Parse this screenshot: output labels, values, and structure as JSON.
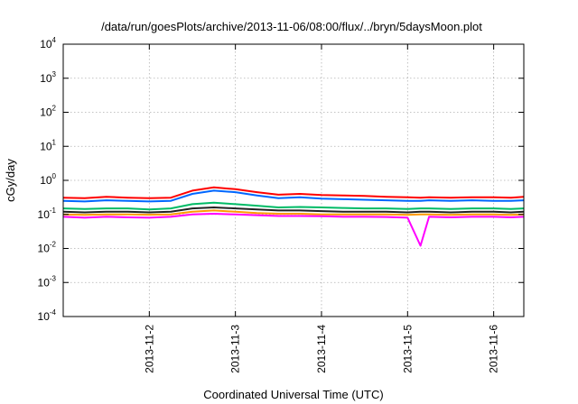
{
  "chart_data": {
    "type": "line",
    "title": "/data/run/goesPlots/archive/2013-11-06/08:00/flux/../bryn/5daysMoon.plot",
    "xlabel": "Coordinated Universal Time (UTC)",
    "ylabel": "cGy/day",
    "yscale": "log",
    "ylim": [
      0.0001,
      10000
    ],
    "xlim": [
      1.0,
      6.35
    ],
    "grid": true,
    "y_ticks": [
      {
        "base": "10",
        "exp": "-4",
        "value": 0.0001
      },
      {
        "base": "10",
        "exp": "-3",
        "value": 0.001
      },
      {
        "base": "10",
        "exp": "-2",
        "value": 0.01
      },
      {
        "base": "10",
        "exp": "-1",
        "value": 0.1
      },
      {
        "base": "10",
        "exp": "0",
        "value": 1
      },
      {
        "base": "10",
        "exp": "1",
        "value": 10
      },
      {
        "base": "10",
        "exp": "2",
        "value": 100
      },
      {
        "base": "10",
        "exp": "3",
        "value": 1000
      },
      {
        "base": "10",
        "exp": "4",
        "value": 10000
      }
    ],
    "x_ticks": [
      {
        "label": "2013-11-2",
        "value": 2
      },
      {
        "label": "2013-11-3",
        "value": 3
      },
      {
        "label": "2013-11-4",
        "value": 4
      },
      {
        "label": "2013-11-5",
        "value": 5
      },
      {
        "label": "2013-11-6",
        "value": 6
      }
    ],
    "x": [
      1.0,
      1.25,
      1.5,
      1.75,
      2.0,
      2.25,
      2.5,
      2.75,
      3.0,
      3.25,
      3.5,
      3.75,
      4.0,
      4.25,
      4.5,
      4.75,
      5.0,
      5.15,
      5.25,
      5.5,
      5.75,
      6.0,
      6.2,
      6.35
    ],
    "series": [
      {
        "color": "#ff0000",
        "values": [
          0.31,
          0.3,
          0.33,
          0.31,
          0.3,
          0.31,
          0.5,
          0.62,
          0.55,
          0.45,
          0.38,
          0.4,
          0.37,
          0.36,
          0.35,
          0.33,
          0.32,
          0.31,
          0.32,
          0.31,
          0.32,
          0.32,
          0.31,
          0.33
        ]
      },
      {
        "color": "#0066ff",
        "values": [
          0.25,
          0.24,
          0.26,
          0.25,
          0.24,
          0.25,
          0.4,
          0.5,
          0.45,
          0.36,
          0.3,
          0.32,
          0.29,
          0.28,
          0.27,
          0.26,
          0.25,
          0.25,
          0.26,
          0.25,
          0.26,
          0.25,
          0.25,
          0.26
        ]
      },
      {
        "color": "#00bb66",
        "values": [
          0.15,
          0.145,
          0.15,
          0.15,
          0.14,
          0.15,
          0.2,
          0.22,
          0.2,
          0.18,
          0.16,
          0.165,
          0.16,
          0.155,
          0.15,
          0.15,
          0.145,
          0.15,
          0.15,
          0.145,
          0.15,
          0.15,
          0.145,
          0.15
        ]
      },
      {
        "color": "#222222",
        "values": [
          0.12,
          0.115,
          0.12,
          0.12,
          0.115,
          0.12,
          0.15,
          0.16,
          0.15,
          0.14,
          0.13,
          0.13,
          0.125,
          0.12,
          0.12,
          0.12,
          0.115,
          0.12,
          0.12,
          0.115,
          0.12,
          0.12,
          0.115,
          0.12
        ]
      },
      {
        "color": "#ff9900",
        "values": [
          0.1,
          0.097,
          0.1,
          0.1,
          0.098,
          0.1,
          0.12,
          0.13,
          0.12,
          0.11,
          0.105,
          0.105,
          0.1,
          0.1,
          0.1,
          0.1,
          0.097,
          0.1,
          0.1,
          0.097,
          0.1,
          0.1,
          0.097,
          0.1
        ]
      },
      {
        "color": "#ff00ff",
        "values": [
          0.085,
          0.08,
          0.085,
          0.082,
          0.08,
          0.085,
          0.1,
          0.105,
          0.1,
          0.095,
          0.09,
          0.09,
          0.088,
          0.085,
          0.085,
          0.084,
          0.08,
          0.012,
          0.085,
          0.082,
          0.085,
          0.085,
          0.082,
          0.085
        ]
      }
    ]
  }
}
